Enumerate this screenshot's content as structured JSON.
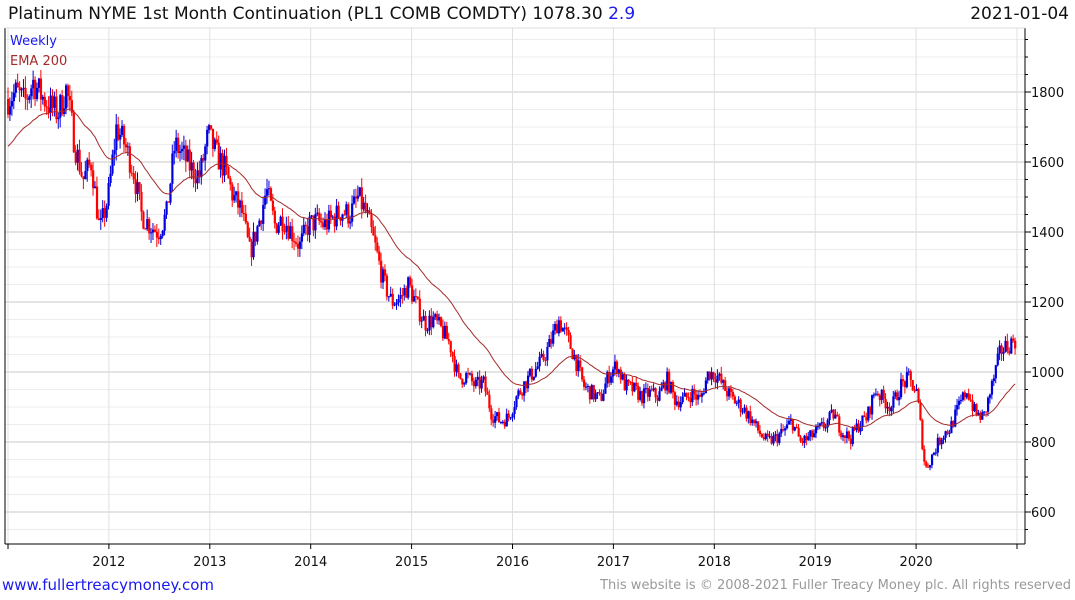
{
  "header": {
    "title": "Platinum NYME 1st Month Continuation (PL1 COMB COMDTY) 1078.30",
    "change": "2.9",
    "date": "2021-01-04"
  },
  "footer": {
    "site": "www.fullertreacymoney.com",
    "copyright": "This website is © 2008-2021 Fuller Treacy Money plc. All rights reserved"
  },
  "colors": {
    "up": "#0000dd",
    "down": "#ff0000",
    "ema": "#a52a2a",
    "legend_weekly": "#1a1aee",
    "legend_ema": "#a52a2a"
  },
  "chart_data": {
    "type": "ohlc",
    "title": "Platinum NYME 1st Month Continuation (PL1 COMB COMDTY)",
    "frequency_label": "Weekly",
    "overlay_label": "EMA 200",
    "last_value": 1078.3,
    "x_range": [
      2011.0,
      2021.0
    ],
    "x_ticks": [
      "2012",
      "2013",
      "2014",
      "2015",
      "2016",
      "2017",
      "2018",
      "2019",
      "2020"
    ],
    "y_range": [
      520,
      1950
    ],
    "y_ticks": [
      600,
      800,
      1000,
      1200,
      1400,
      1600,
      1800
    ],
    "grid": true,
    "monthly_close_approx": {
      "2011": [
        1780,
        1800,
        1770,
        1830,
        1790,
        1760,
        1740,
        1810,
        1650,
        1550,
        1600,
        1400
      ],
      "2012": [
        1500,
        1700,
        1650,
        1580,
        1450,
        1420,
        1400,
        1450,
        1650,
        1620,
        1580,
        1560
      ],
      "2013": [
        1680,
        1620,
        1580,
        1500,
        1460,
        1340,
        1420,
        1520,
        1420,
        1440,
        1400,
        1360
      ],
      "2014": [
        1420,
        1430,
        1420,
        1440,
        1460,
        1450,
        1500,
        1450,
        1360,
        1260,
        1200,
        1210
      ],
      "2015": [
        1250,
        1190,
        1140,
        1150,
        1120,
        1080,
        980,
        990,
        960,
        970,
        880,
        860
      ],
      "2016": [
        870,
        930,
        970,
        1000,
        1030,
        1080,
        1150,
        1100,
        1040,
        960,
        940,
        920
      ],
      "2017": [
        990,
        1020,
        960,
        950,
        930,
        940,
        930,
        980,
        920,
        920,
        940,
        920
      ],
      "2018": [
        1000,
        990,
        950,
        920,
        900,
        870,
        830,
        800,
        810,
        830,
        860,
        800
      ],
      "2019": [
        810,
        830,
        850,
        880,
        830,
        810,
        850,
        870,
        950,
        920,
        900,
        960
      ],
      "2020": [
        980,
        940,
        720,
        770,
        820,
        840,
        900,
        950,
        880,
        870,
        960,
        1060
      ]
    },
    "ema_start": 1640
  }
}
